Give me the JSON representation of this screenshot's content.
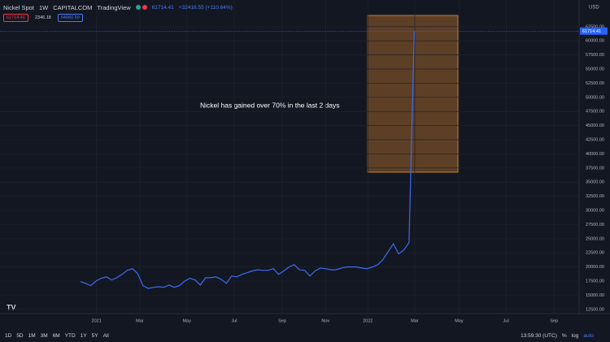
{
  "header": {
    "symbol": "Nickel Spot",
    "interval": "1W",
    "exchange": "CAPITALCOM",
    "source": "TradingView",
    "last": "61714.41",
    "change": "+32416.55 (+110.64%)",
    "sell": "61714.41",
    "spread": "2346.18",
    "buy": "64060.59"
  },
  "currency": "USD",
  "toolbar": {
    "ranges": [
      "1D",
      "5D",
      "1M",
      "3M",
      "6M",
      "YTD",
      "1Y",
      "5Y",
      "All"
    ],
    "time": "13:59:30 (UTC)",
    "options": [
      "%",
      "log",
      "auto"
    ]
  },
  "chart_data": {
    "type": "line",
    "annotation": "Nickel has gained over 70% in the last 2 days",
    "color": "#3d6cf0",
    "values": [
      17400,
      17100,
      16700,
      17500,
      18000,
      18250,
      17700,
      18100,
      18700,
      19400,
      19700,
      18800,
      16700,
      16200,
      16400,
      16500,
      16400,
      16800,
      16400,
      16700,
      17500,
      18000,
      17700,
      16800,
      18100,
      18100,
      18250,
      17800,
      17100,
      18400,
      18250,
      18700,
      19000,
      19300,
      19500,
      19400,
      19400,
      19700,
      18700,
      19300,
      20000,
      20400,
      19500,
      19400,
      18400,
      19300,
      19800,
      19700,
      19500,
      19500,
      19800,
      20000,
      20000,
      20000,
      19800,
      19700,
      20000,
      20400,
      21300,
      22700,
      24100,
      22300,
      23000,
      24300,
      61714.41
    ],
    "xlim": [
      -15.4,
      95.6
    ],
    "xticks": [
      {
        "value": 3.1,
        "label": "2021"
      },
      {
        "value": 11.4,
        "label": "Mar"
      },
      {
        "value": 20.4,
        "label": "May"
      },
      {
        "value": 29.5,
        "label": "Jul"
      },
      {
        "value": 38.7,
        "label": "Sep"
      },
      {
        "value": 47.0,
        "label": "Nov"
      },
      {
        "value": 55.1,
        "label": "2022"
      },
      {
        "value": 64.1,
        "label": "Mar"
      },
      {
        "value": 72.6,
        "label": "May"
      },
      {
        "value": 81.6,
        "label": "Jul"
      },
      {
        "value": 90.8,
        "label": "Sep"
      }
    ],
    "ylim": [
      11900,
      66500
    ],
    "yticks": [
      {
        "value": 12500,
        "label": "12500.00"
      },
      {
        "value": 15000,
        "label": "15000.00"
      },
      {
        "value": 17500,
        "label": "17500.00"
      },
      {
        "value": 20000,
        "label": "20000.00"
      },
      {
        "value": 22500,
        "label": "22500.00"
      },
      {
        "value": 25000,
        "label": "25000.00"
      },
      {
        "value": 27500,
        "label": "27500.00"
      },
      {
        "value": 30000,
        "label": "30000.00"
      },
      {
        "value": 32500,
        "label": "32500.00"
      },
      {
        "value": 35000,
        "label": "35000.00"
      },
      {
        "value": 37500,
        "label": "37500.00"
      },
      {
        "value": 40000,
        "label": "40000.00"
      },
      {
        "value": 42500,
        "label": "42500.00"
      },
      {
        "value": 45000,
        "label": "45000.00"
      },
      {
        "value": 47500,
        "label": "47500.00"
      },
      {
        "value": 50000,
        "label": "50000.00"
      },
      {
        "value": 52500,
        "label": "52500.00"
      },
      {
        "value": 55000,
        "label": "55000.00"
      },
      {
        "value": 57500,
        "label": "57500.00"
      },
      {
        "value": 60000,
        "label": "60000.00"
      },
      {
        "value": 62500,
        "label": "62500.00"
      }
    ],
    "price_label": {
      "value": 61714.41,
      "label": "61714.41"
    },
    "grid": true
  }
}
